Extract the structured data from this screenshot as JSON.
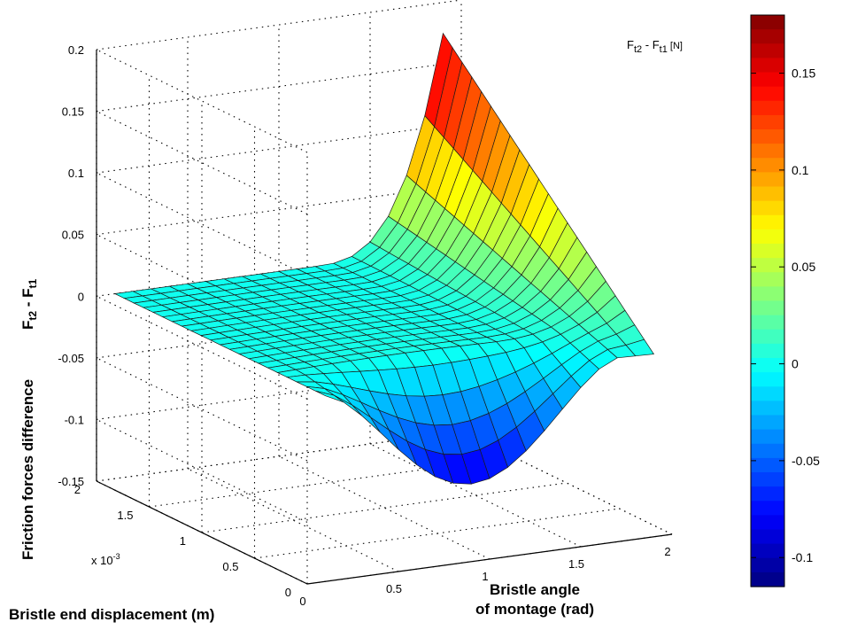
{
  "chart_data": {
    "type": "surface",
    "title": "",
    "xlabel": "Bristle angle of montage (rad)",
    "xlabel_lines": [
      "Bristle",
      "angle",
      "of montage (rad)"
    ],
    "ylabel": "Bristle end displacement (m)",
    "ylabel_multiplier": "x 10",
    "ylabel_multiplier_exp": "-3",
    "zlabel": "Friction forces difference",
    "zlabel_symbol": {
      "prefix": "F",
      "sub2": "t2",
      "mid": " - F",
      "sub1": "t1"
    },
    "colorbar_title": {
      "prefix": "F",
      "sub2": "t2",
      "mid": " - F",
      "sub1": "t1",
      "unit": " [N]"
    },
    "x_ticks": [
      "0",
      "0.5",
      "1",
      "1.5",
      "2"
    ],
    "y_ticks": [
      "0",
      "0.5",
      "1",
      "1.5",
      "2"
    ],
    "z_ticks": [
      "0.2",
      "0.15",
      "0.1",
      "0.05",
      "0",
      "-0.05",
      "-0.1",
      "-0.15"
    ],
    "colorbar_ticks": [
      "0.15",
      "0.1",
      "0.05",
      "0",
      "-0.05",
      "-0.1"
    ],
    "xlim": [
      0,
      2
    ],
    "ylim": [
      0,
      0.002
    ],
    "zlim": [
      -0.15,
      0.2
    ],
    "clim": [
      -0.115,
      0.18
    ],
    "colormap": "jet",
    "grid": true,
    "surface_description_values": {
      "x_range": [
        0.1,
        1.9
      ],
      "y_range": [
        0,
        0.002
      ],
      "z_min": -0.09,
      "z_max": 0.18,
      "z_flat_region": 0
    }
  }
}
